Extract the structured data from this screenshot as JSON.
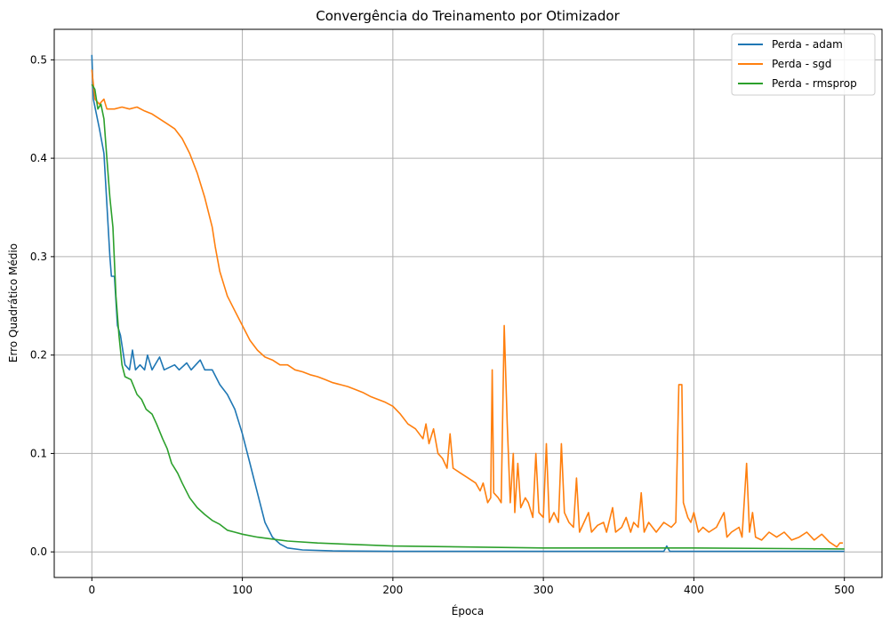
{
  "chart_data": {
    "type": "line",
    "title": "Convergência do Treinamento por Otimizador",
    "xlabel": "Época",
    "ylabel": "Erro Quadrático Médio",
    "xlim": [
      -25,
      525
    ],
    "ylim": [
      -0.026,
      0.531
    ],
    "xticks": [
      0,
      100,
      200,
      300,
      400,
      500
    ],
    "yticks": [
      0.0,
      0.1,
      0.2,
      0.3,
      0.4,
      0.5
    ],
    "ytick_labels": [
      "0.0",
      "0.1",
      "0.2",
      "0.3",
      "0.4",
      "0.5"
    ],
    "grid": true,
    "legend_position": "top-right",
    "series": [
      {
        "name": "Perda - adam",
        "color": "#1f77b4",
        "points": [
          [
            0,
            0.505
          ],
          [
            1,
            0.46
          ],
          [
            5,
            0.43
          ],
          [
            8,
            0.405
          ],
          [
            12,
            0.3
          ],
          [
            13,
            0.28
          ],
          [
            15,
            0.28
          ],
          [
            17,
            0.23
          ],
          [
            19,
            0.22
          ],
          [
            22,
            0.19
          ],
          [
            25,
            0.185
          ],
          [
            27,
            0.205
          ],
          [
            29,
            0.185
          ],
          [
            32,
            0.19
          ],
          [
            35,
            0.185
          ],
          [
            37,
            0.2
          ],
          [
            40,
            0.185
          ],
          [
            45,
            0.198
          ],
          [
            48,
            0.185
          ],
          [
            55,
            0.19
          ],
          [
            58,
            0.185
          ],
          [
            63,
            0.192
          ],
          [
            66,
            0.185
          ],
          [
            72,
            0.195
          ],
          [
            75,
            0.185
          ],
          [
            80,
            0.185
          ],
          [
            85,
            0.17
          ],
          [
            90,
            0.16
          ],
          [
            95,
            0.145
          ],
          [
            98,
            0.13
          ],
          [
            100,
            0.12
          ],
          [
            105,
            0.09
          ],
          [
            110,
            0.06
          ],
          [
            115,
            0.03
          ],
          [
            120,
            0.015
          ],
          [
            125,
            0.008
          ],
          [
            130,
            0.004
          ],
          [
            140,
            0.002
          ],
          [
            160,
            0.001
          ],
          [
            200,
            0.0005
          ],
          [
            380,
            0.0005
          ],
          [
            382,
            0.006
          ],
          [
            384,
            0.0005
          ],
          [
            500,
            0.0005
          ]
        ]
      },
      {
        "name": "Perda - sgd",
        "color": "#ff7f0e",
        "points": [
          [
            0,
            0.49
          ],
          [
            2,
            0.46
          ],
          [
            5,
            0.455
          ],
          [
            8,
            0.46
          ],
          [
            10,
            0.45
          ],
          [
            15,
            0.45
          ],
          [
            20,
            0.452
          ],
          [
            25,
            0.45
          ],
          [
            30,
            0.452
          ],
          [
            35,
            0.448
          ],
          [
            40,
            0.445
          ],
          [
            45,
            0.44
          ],
          [
            50,
            0.435
          ],
          [
            55,
            0.43
          ],
          [
            60,
            0.42
          ],
          [
            65,
            0.405
          ],
          [
            70,
            0.385
          ],
          [
            75,
            0.36
          ],
          [
            80,
            0.33
          ],
          [
            82,
            0.31
          ],
          [
            85,
            0.285
          ],
          [
            90,
            0.26
          ],
          [
            95,
            0.245
          ],
          [
            100,
            0.23
          ],
          [
            105,
            0.215
          ],
          [
            110,
            0.205
          ],
          [
            115,
            0.198
          ],
          [
            120,
            0.195
          ],
          [
            125,
            0.19
          ],
          [
            130,
            0.19
          ],
          [
            135,
            0.185
          ],
          [
            140,
            0.183
          ],
          [
            145,
            0.18
          ],
          [
            150,
            0.178
          ],
          [
            155,
            0.175
          ],
          [
            160,
            0.172
          ],
          [
            165,
            0.17
          ],
          [
            170,
            0.168
          ],
          [
            175,
            0.165
          ],
          [
            180,
            0.162
          ],
          [
            185,
            0.158
          ],
          [
            190,
            0.155
          ],
          [
            195,
            0.152
          ],
          [
            200,
            0.148
          ],
          [
            205,
            0.14
          ],
          [
            210,
            0.13
          ],
          [
            215,
            0.125
          ],
          [
            220,
            0.115
          ],
          [
            222,
            0.13
          ],
          [
            224,
            0.11
          ],
          [
            227,
            0.125
          ],
          [
            230,
            0.1
          ],
          [
            233,
            0.095
          ],
          [
            236,
            0.085
          ],
          [
            238,
            0.12
          ],
          [
            240,
            0.085
          ],
          [
            245,
            0.08
          ],
          [
            250,
            0.075
          ],
          [
            255,
            0.07
          ],
          [
            258,
            0.062
          ],
          [
            260,
            0.07
          ],
          [
            263,
            0.05
          ],
          [
            265,
            0.055
          ],
          [
            266,
            0.185
          ],
          [
            267,
            0.06
          ],
          [
            270,
            0.055
          ],
          [
            272,
            0.05
          ],
          [
            274,
            0.23
          ],
          [
            276,
            0.13
          ],
          [
            278,
            0.05
          ],
          [
            280,
            0.1
          ],
          [
            281,
            0.04
          ],
          [
            283,
            0.09
          ],
          [
            285,
            0.045
          ],
          [
            288,
            0.055
          ],
          [
            290,
            0.05
          ],
          [
            293,
            0.035
          ],
          [
            295,
            0.1
          ],
          [
            297,
            0.04
          ],
          [
            300,
            0.035
          ],
          [
            302,
            0.11
          ],
          [
            304,
            0.03
          ],
          [
            307,
            0.04
          ],
          [
            310,
            0.03
          ],
          [
            312,
            0.11
          ],
          [
            314,
            0.04
          ],
          [
            317,
            0.03
          ],
          [
            320,
            0.025
          ],
          [
            322,
            0.075
          ],
          [
            324,
            0.02
          ],
          [
            330,
            0.04
          ],
          [
            332,
            0.02
          ],
          [
            336,
            0.027
          ],
          [
            340,
            0.03
          ],
          [
            342,
            0.02
          ],
          [
            346,
            0.045
          ],
          [
            348,
            0.02
          ],
          [
            352,
            0.025
          ],
          [
            355,
            0.035
          ],
          [
            358,
            0.02
          ],
          [
            360,
            0.03
          ],
          [
            363,
            0.025
          ],
          [
            365,
            0.06
          ],
          [
            367,
            0.02
          ],
          [
            370,
            0.03
          ],
          [
            375,
            0.02
          ],
          [
            380,
            0.03
          ],
          [
            385,
            0.025
          ],
          [
            388,
            0.03
          ],
          [
            390,
            0.17
          ],
          [
            392,
            0.17
          ],
          [
            393,
            0.05
          ],
          [
            396,
            0.035
          ],
          [
            398,
            0.03
          ],
          [
            400,
            0.04
          ],
          [
            403,
            0.02
          ],
          [
            406,
            0.025
          ],
          [
            410,
            0.02
          ],
          [
            415,
            0.025
          ],
          [
            420,
            0.04
          ],
          [
            422,
            0.015
          ],
          [
            425,
            0.02
          ],
          [
            430,
            0.025
          ],
          [
            432,
            0.015
          ],
          [
            435,
            0.09
          ],
          [
            437,
            0.02
          ],
          [
            439,
            0.04
          ],
          [
            441,
            0.015
          ],
          [
            445,
            0.012
          ],
          [
            450,
            0.02
          ],
          [
            455,
            0.015
          ],
          [
            460,
            0.02
          ],
          [
            465,
            0.012
          ],
          [
            470,
            0.015
          ],
          [
            475,
            0.02
          ],
          [
            480,
            0.012
          ],
          [
            485,
            0.018
          ],
          [
            490,
            0.01
          ],
          [
            495,
            0.005
          ],
          [
            497,
            0.009
          ],
          [
            499,
            0.009
          ]
        ]
      },
      {
        "name": "Perda - rmsprop",
        "color": "#2ca02c",
        "points": [
          [
            0,
            0.475
          ],
          [
            2,
            0.47
          ],
          [
            4,
            0.45
          ],
          [
            6,
            0.455
          ],
          [
            8,
            0.44
          ],
          [
            10,
            0.4
          ],
          [
            12,
            0.36
          ],
          [
            14,
            0.33
          ],
          [
            16,
            0.26
          ],
          [
            18,
            0.22
          ],
          [
            20,
            0.19
          ],
          [
            22,
            0.178
          ],
          [
            26,
            0.175
          ],
          [
            30,
            0.16
          ],
          [
            33,
            0.155
          ],
          [
            36,
            0.145
          ],
          [
            40,
            0.14
          ],
          [
            43,
            0.13
          ],
          [
            47,
            0.115
          ],
          [
            50,
            0.105
          ],
          [
            53,
            0.09
          ],
          [
            57,
            0.08
          ],
          [
            60,
            0.07
          ],
          [
            65,
            0.055
          ],
          [
            70,
            0.045
          ],
          [
            75,
            0.038
          ],
          [
            80,
            0.032
          ],
          [
            85,
            0.028
          ],
          [
            90,
            0.022
          ],
          [
            95,
            0.02
          ],
          [
            100,
            0.018
          ],
          [
            110,
            0.015
          ],
          [
            120,
            0.013
          ],
          [
            130,
            0.011
          ],
          [
            150,
            0.009
          ],
          [
            200,
            0.006
          ],
          [
            250,
            0.005
          ],
          [
            300,
            0.004
          ],
          [
            400,
            0.004
          ],
          [
            500,
            0.003
          ]
        ]
      }
    ]
  }
}
